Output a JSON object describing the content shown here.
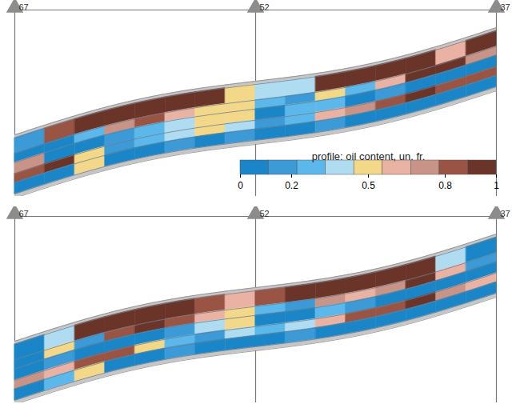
{
  "chart_data": {
    "type": "profile",
    "wells": [
      "67",
      "52",
      "37"
    ],
    "colorbar": {
      "title": "profile: oil content, un. fr.",
      "range": [
        0,
        1
      ],
      "ticks": [
        0,
        0.2,
        0.5,
        0.8,
        1
      ],
      "colors": [
        "#1a86c8",
        "#3c9ad6",
        "#5cb8ea",
        "#b0dcf2",
        "#f4d88a",
        "#eab2a2",
        "#c89488",
        "#9a5444",
        "#6a3428"
      ]
    },
    "panels": [
      {
        "layers": [
          [
            0.15,
            0.85,
            0.95,
            0.95,
            0.95,
            0.9,
            0.9,
            0.5,
            0.35,
            0.4,
            0.9,
            0.95,
            0.95,
            0.95,
            0.6,
            0.95
          ],
          [
            0.1,
            0.05,
            0.25,
            0.75,
            0.85,
            0.65,
            0.5,
            0.55,
            0.25,
            0.15,
            0.5,
            0.3,
            0.65,
            0.9,
            0.95,
            0.7
          ],
          [
            0.7,
            0.05,
            0.05,
            0.2,
            0.3,
            0.35,
            0.45,
            0.55,
            0.1,
            0.3,
            0.25,
            0.1,
            0.2,
            0.05,
            0.05,
            0.1
          ],
          [
            0.85,
            0.9,
            0.55,
            0.15,
            0.3,
            0.35,
            0.5,
            0.35,
            0.2,
            0.3,
            0.6,
            0.75,
            0.85,
            0.9,
            0.8,
            0.85
          ],
          [
            0.05,
            0.1,
            0.5,
            0.1,
            0.05,
            0.15,
            0.1,
            0.2,
            0.05,
            0.1,
            0.15,
            0.05,
            0.1,
            0.05,
            0.1,
            0.05
          ]
        ]
      },
      {
        "layers": [
          [
            0.1,
            0.35,
            0.9,
            0.95,
            0.95,
            0.95,
            0.85,
            0.6,
            0.85,
            0.95,
            0.95,
            0.95,
            0.9,
            0.95,
            0.35,
            0.05
          ],
          [
            0.05,
            0.5,
            0.2,
            0.85,
            0.95,
            0.8,
            0.6,
            0.55,
            0.3,
            0.15,
            0.75,
            0.6,
            0.7,
            0.9,
            0.6,
            0.2
          ],
          [
            0.05,
            0.15,
            0.05,
            0.05,
            0.1,
            0.2,
            0.35,
            0.5,
            0.1,
            0.05,
            0.3,
            0.15,
            0.1,
            0.05,
            0.05,
            0.1
          ],
          [
            0.75,
            0.6,
            0.85,
            0.85,
            0.5,
            0.3,
            0.2,
            0.4,
            0.25,
            0.35,
            0.65,
            0.8,
            0.85,
            0.9,
            0.75,
            0.6
          ],
          [
            0.05,
            0.3,
            0.5,
            0.05,
            0.1,
            0.15,
            0.1,
            0.05,
            0.1,
            0.15,
            0.05,
            0.1,
            0.05,
            0.05,
            0.1,
            0.05
          ]
        ]
      }
    ]
  }
}
